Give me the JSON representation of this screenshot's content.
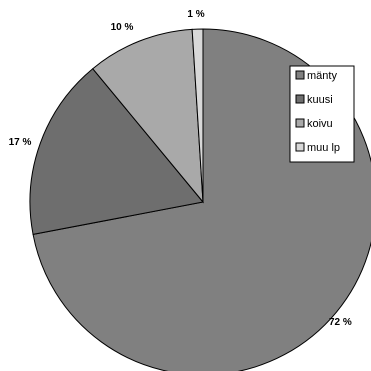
{
  "chart_data": {
    "type": "pie",
    "slices": [
      {
        "label": "mänty",
        "value": 72,
        "display": "72 %",
        "color": "#808080"
      },
      {
        "label": "kuusi",
        "value": 17,
        "display": "17 %",
        "color": "#6e6e6e"
      },
      {
        "label": "koivu",
        "value": 10,
        "display": "10 %",
        "color": "#a9a9a9"
      },
      {
        "label": "muu lp",
        "value": 1,
        "display": "1 %",
        "color": "#d8d8d8"
      }
    ],
    "legend_position": "right"
  }
}
